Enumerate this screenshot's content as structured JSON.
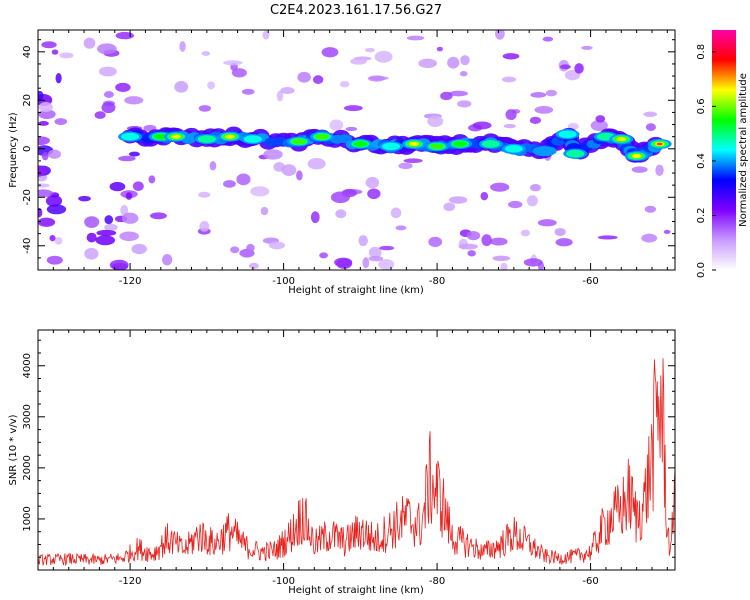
{
  "figure": {
    "title": "C2E4.2023.161.17.56.G27"
  },
  "chart_data": [
    {
      "type": "heatmap",
      "xlabel": "Height of straight line (km)",
      "ylabel": "Frequency (Hz)",
      "xlim": [
        -132,
        -49
      ],
      "ylim": [
        -50,
        49
      ],
      "x_ticks": [
        -120,
        -100,
        -80,
        -60
      ],
      "x_tick_labels": [
        "-120",
        "-100",
        "-80",
        "-60"
      ],
      "y_ticks": [
        -40,
        -20,
        0,
        20,
        40
      ],
      "y_tick_labels": [
        "-40",
        "-20",
        "0",
        "20",
        "40"
      ],
      "colormap": [
        "#ffffff",
        "#c99bff",
        "#7f00ff",
        "#0000ff",
        "#00ffff",
        "#00ff00",
        "#ffff00",
        "#ff0000",
        "#ff00aa"
      ],
      "colorbar": {
        "label": "Normalized spectral amplitude",
        "range": [
          0,
          0.88
        ],
        "ticks": [
          0.0,
          0.2,
          0.4,
          0.6,
          0.8
        ],
        "tick_labels": [
          "0.0",
          "0.2",
          "0.4",
          "0.6",
          "0.8"
        ]
      },
      "main_band": [
        {
          "x": -120,
          "freq": 5,
          "amp": 0.45
        },
        {
          "x": -116,
          "freq": 5,
          "amp": 0.55
        },
        {
          "x": -114,
          "freq": 5,
          "amp": 0.65
        },
        {
          "x": -110,
          "freq": 4,
          "amp": 0.5
        },
        {
          "x": -107,
          "freq": 5,
          "amp": 0.65
        },
        {
          "x": -104,
          "freq": 4,
          "amp": 0.45
        },
        {
          "x": -98,
          "freq": 3,
          "amp": 0.6
        },
        {
          "x": -95,
          "freq": 5,
          "amp": 0.6
        },
        {
          "x": -90,
          "freq": 2,
          "amp": 0.55
        },
        {
          "x": -86,
          "freq": 1,
          "amp": 0.45
        },
        {
          "x": -83,
          "freq": 2,
          "amp": 0.7
        },
        {
          "x": -80,
          "freq": 1,
          "amp": 0.6
        },
        {
          "x": -77,
          "freq": 2,
          "amp": 0.55
        },
        {
          "x": -73,
          "freq": 2,
          "amp": 0.5
        },
        {
          "x": -70,
          "freq": 0,
          "amp": 0.45
        },
        {
          "x": -66,
          "freq": -1,
          "amp": 0.4
        },
        {
          "x": -63,
          "freq": 6,
          "amp": 0.45
        },
        {
          "x": -62,
          "freq": -2,
          "amp": 0.5
        },
        {
          "x": -58,
          "freq": 5,
          "amp": 0.5
        },
        {
          "x": -56,
          "freq": 4,
          "amp": 0.65
        },
        {
          "x": -54,
          "freq": -3,
          "amp": 0.7
        },
        {
          "x": -51,
          "freq": 2,
          "amp": 0.8
        }
      ]
    },
    {
      "type": "line",
      "xlabel": "Height of straight line (km)",
      "ylabel": "SNR (10 * v/v)",
      "xlim": [
        -132,
        -49
      ],
      "ylim": [
        0,
        4700
      ],
      "x_ticks": [
        -120,
        -100,
        -80,
        -60
      ],
      "x_tick_labels": [
        "-120",
        "-100",
        "-80",
        "-60"
      ],
      "y_ticks": [
        1000,
        2000,
        3000,
        4000
      ],
      "y_tick_labels": [
        "1000",
        "2000",
        "3000",
        "4000"
      ],
      "line_color": "#e8201c",
      "series": [
        {
          "x": [
            -132,
            -128,
            -124,
            -121,
            -119,
            -117,
            -115,
            -113,
            -111,
            -109,
            -107,
            -105,
            -103,
            -101,
            -99,
            -97.5,
            -96,
            -94,
            -92,
            -90,
            -88,
            -86,
            -84,
            -82,
            -81,
            -79.5,
            -78,
            -76,
            -74,
            -72,
            -70,
            -68,
            -66,
            -64,
            -62,
            -60,
            -58,
            -56,
            -55,
            -54,
            -53,
            -52,
            -51.5,
            -51,
            -50.5,
            -50,
            -49.5,
            -49
          ],
          "values": [
            250,
            280,
            250,
            300,
            550,
            400,
            800,
            500,
            900,
            650,
            1000,
            600,
            450,
            500,
            900,
            1400,
            650,
            900,
            700,
            1000,
            750,
            1050,
            1300,
            1100,
            2300,
            1800,
            800,
            650,
            450,
            600,
            900,
            650,
            350,
            300,
            350,
            450,
            1200,
            1500,
            1900,
            1300,
            1700,
            2800,
            3800,
            4300,
            3500,
            1000,
            400,
            2500
          ]
        }
      ]
    }
  ]
}
